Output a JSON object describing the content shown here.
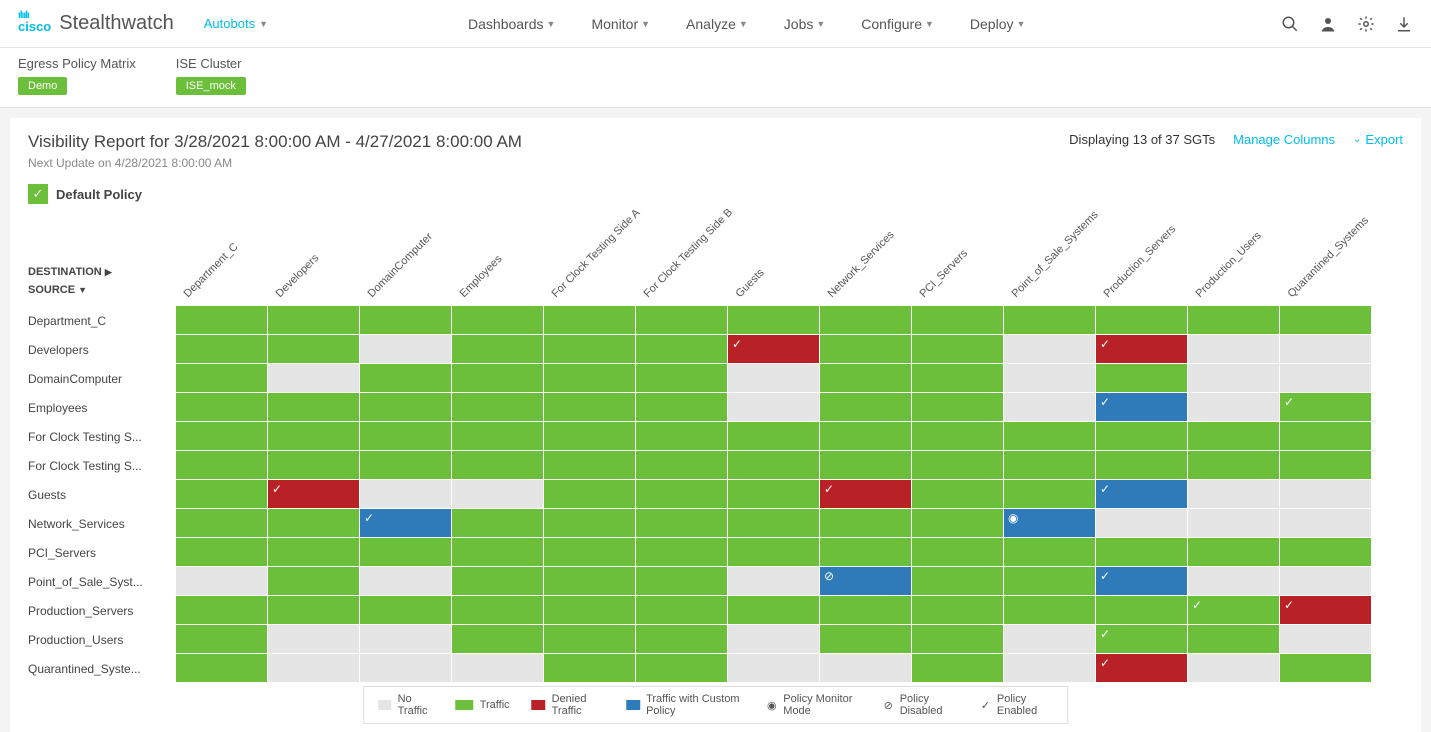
{
  "brand": {
    "logo": "cisco",
    "product": "Stealthwatch",
    "tenant": "Autobots"
  },
  "nav": [
    "Dashboards",
    "Monitor",
    "Analyze",
    "Jobs",
    "Configure",
    "Deploy"
  ],
  "subheader": [
    {
      "label": "Egress Policy Matrix",
      "tag": "Demo",
      "tagColor": "#6cbf3b"
    },
    {
      "label": "ISE Cluster",
      "tag": "ISE_mock",
      "tagColor": "#6cbf3b"
    }
  ],
  "report": {
    "title": "Visibility Report for 3/28/2021 8:00:00 AM - 4/27/2021 8:00:00 AM",
    "nextUpdate": "Next Update on 4/28/2021 8:00:00 AM",
    "displaying": "Displaying 13 of 37 SGTs",
    "manageColumns": "Manage Columns",
    "export": "Export",
    "defaultPolicy": "Default Policy"
  },
  "axes": {
    "destination": "DESTINATION",
    "source": "SOURCE"
  },
  "columns": [
    "Department_C",
    "Developers",
    "DomainComputer",
    "Employees",
    "For Clock Testing Side A",
    "For Clock Testing Side B",
    "Guests",
    "Network_Services",
    "PCI_Servers",
    "Point_of_Sale_Systems",
    "Production_Servers",
    "Production_Users",
    "Quarantined_Systems"
  ],
  "rows": [
    "Department_C",
    "Developers",
    "DomainComputer",
    "Employees",
    "For Clock Testing S...",
    "For Clock Testing S...",
    "Guests",
    "Network_Services",
    "PCI_Servers",
    "Point_of_Sale_Syst...",
    "Production_Servers",
    "Production_Users",
    "Quarantined_Syste..."
  ],
  "colors": {
    "none": "#e5e5e5",
    "traffic": "#6cbf3b",
    "denied": "#b82226",
    "custom": "#2f7ab9"
  },
  "cells": [
    [
      "traffic",
      "traffic",
      "traffic",
      "traffic",
      "traffic",
      "traffic",
      "traffic",
      "traffic",
      "traffic",
      "traffic",
      "traffic",
      "traffic",
      "traffic"
    ],
    [
      "traffic",
      "traffic",
      "none",
      "traffic",
      "traffic",
      "traffic",
      "denied",
      "traffic",
      "traffic",
      "none",
      "denied",
      "none",
      "none"
    ],
    [
      "traffic",
      "none",
      "traffic",
      "traffic",
      "traffic",
      "traffic",
      "none",
      "traffic",
      "traffic",
      "none",
      "traffic",
      "none",
      "none"
    ],
    [
      "traffic",
      "traffic",
      "traffic",
      "traffic",
      "traffic",
      "traffic",
      "none",
      "traffic",
      "traffic",
      "none",
      "custom",
      "none",
      "traffic"
    ],
    [
      "traffic",
      "traffic",
      "traffic",
      "traffic",
      "traffic",
      "traffic",
      "traffic",
      "traffic",
      "traffic",
      "traffic",
      "traffic",
      "traffic",
      "traffic"
    ],
    [
      "traffic",
      "traffic",
      "traffic",
      "traffic",
      "traffic",
      "traffic",
      "traffic",
      "traffic",
      "traffic",
      "traffic",
      "traffic",
      "traffic",
      "traffic"
    ],
    [
      "traffic",
      "denied",
      "none",
      "none",
      "traffic",
      "traffic",
      "traffic",
      "denied",
      "traffic",
      "traffic",
      "custom",
      "none",
      "none"
    ],
    [
      "traffic",
      "traffic",
      "custom",
      "traffic",
      "traffic",
      "traffic",
      "traffic",
      "traffic",
      "traffic",
      "custom",
      "none",
      "none",
      "none"
    ],
    [
      "traffic",
      "traffic",
      "traffic",
      "traffic",
      "traffic",
      "traffic",
      "traffic",
      "traffic",
      "traffic",
      "traffic",
      "traffic",
      "traffic",
      "traffic"
    ],
    [
      "none",
      "traffic",
      "none",
      "traffic",
      "traffic",
      "traffic",
      "none",
      "custom",
      "traffic",
      "traffic",
      "custom",
      "none",
      "none"
    ],
    [
      "traffic",
      "traffic",
      "traffic",
      "traffic",
      "traffic",
      "traffic",
      "traffic",
      "traffic",
      "traffic",
      "traffic",
      "traffic",
      "traffic",
      "denied"
    ],
    [
      "traffic",
      "none",
      "none",
      "traffic",
      "traffic",
      "traffic",
      "none",
      "traffic",
      "traffic",
      "none",
      "traffic",
      "traffic",
      "none"
    ],
    [
      "traffic",
      "none",
      "none",
      "none",
      "traffic",
      "traffic",
      "none",
      "none",
      "traffic",
      "none",
      "denied",
      "none",
      "traffic"
    ]
  ],
  "marks": {
    "1,6": "check",
    "1,10": "check",
    "3,10": "check",
    "3,12": "check",
    "6,1": "check",
    "6,7": "check",
    "6,10": "check",
    "7,2": "check",
    "7,9": "eye",
    "9,7": "slash",
    "9,10": "check",
    "10,11": "check",
    "10,12": "check",
    "11,10": "check",
    "12,10": "check"
  },
  "legend": {
    "noTraffic": "No Traffic",
    "traffic": "Traffic",
    "denied": "Denied Traffic",
    "custom": "Traffic with Custom Policy",
    "monitor": "Policy Monitor Mode",
    "disabled": "Policy Disabled",
    "enabled": "Policy Enabled"
  }
}
